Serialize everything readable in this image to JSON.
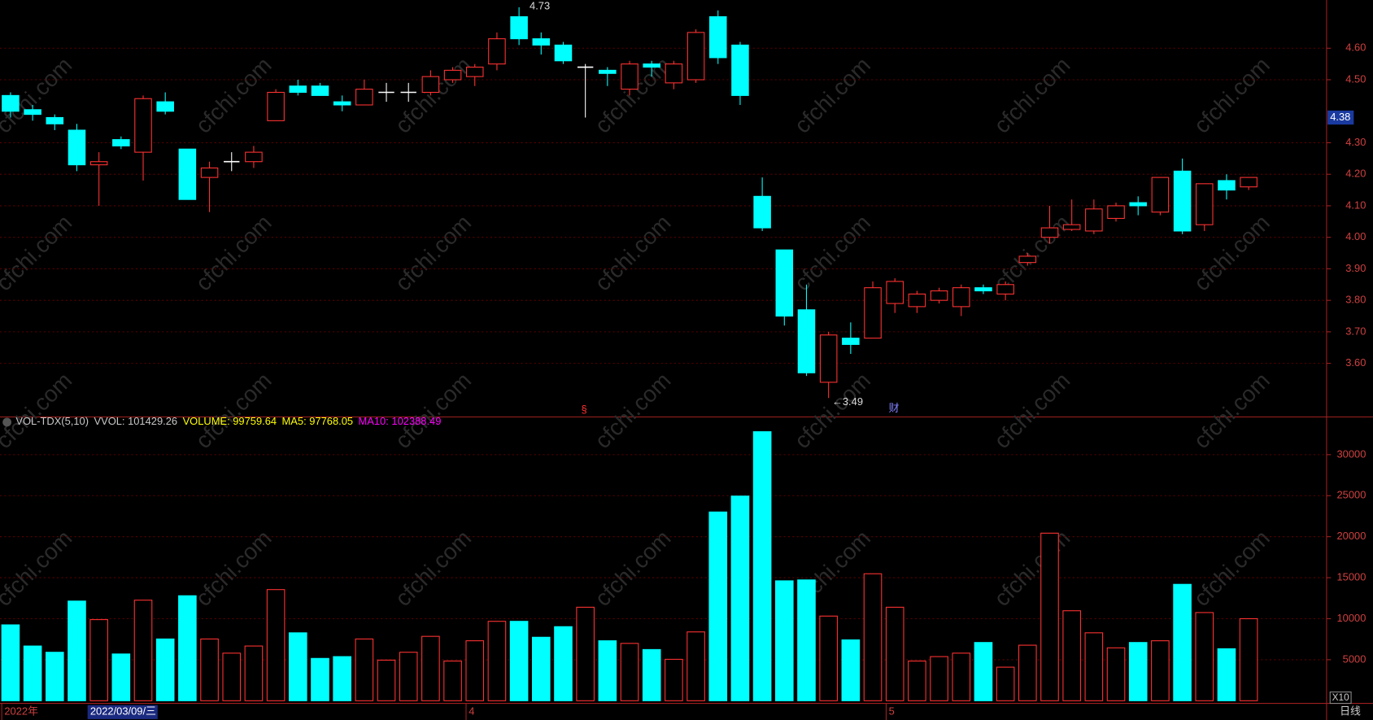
{
  "chart_data": [
    {
      "type": "candlestick",
      "open": [
        4.45,
        4.405,
        4.38,
        4.34,
        4.23,
        4.31,
        4.27,
        4.43,
        4.28,
        4.19,
        4.24,
        4.24,
        4.37,
        4.48,
        4.48,
        4.43,
        4.42,
        4.46,
        4.46,
        4.46,
        4.5,
        4.51,
        4.55,
        4.7,
        4.63,
        4.61,
        4.54,
        4.53,
        4.47,
        4.55,
        4.49,
        4.5,
        4.7,
        4.61,
        4.13,
        3.96,
        3.77,
        3.54,
        3.68,
        3.68,
        3.79,
        3.78,
        3.8,
        3.78,
        3.84,
        3.82,
        3.92,
        4.0,
        4.025,
        4.02,
        4.06,
        4.11,
        4.08,
        4.21,
        4.04,
        4.18,
        4.16
      ],
      "high": [
        4.46,
        4.42,
        4.39,
        4.36,
        4.27,
        4.32,
        4.45,
        4.46,
        4.28,
        4.24,
        4.27,
        4.29,
        4.47,
        4.5,
        4.49,
        4.45,
        4.5,
        4.49,
        4.49,
        4.53,
        4.54,
        4.55,
        4.65,
        4.73,
        4.65,
        4.62,
        4.55,
        4.54,
        4.56,
        4.56,
        4.56,
        4.66,
        4.72,
        4.62,
        4.19,
        3.96,
        3.85,
        3.7,
        3.73,
        3.86,
        3.87,
        3.83,
        3.84,
        3.85,
        3.85,
        3.86,
        3.95,
        4.1,
        4.12,
        4.12,
        4.11,
        4.13,
        4.19,
        4.25,
        4.17,
        4.2,
        4.19
      ],
      "low": [
        4.38,
        4.37,
        4.34,
        4.21,
        4.1,
        4.28,
        4.18,
        4.39,
        4.12,
        4.08,
        4.21,
        4.22,
        4.37,
        4.45,
        4.45,
        4.4,
        4.42,
        4.43,
        4.43,
        4.45,
        4.49,
        4.48,
        4.53,
        4.61,
        4.58,
        4.55,
        4.38,
        4.48,
        4.45,
        4.51,
        4.47,
        4.49,
        4.55,
        4.42,
        4.02,
        3.72,
        3.56,
        3.49,
        3.63,
        3.68,
        3.76,
        3.76,
        3.79,
        3.75,
        3.82,
        3.8,
        3.91,
        3.98,
        4.02,
        4.01,
        4.05,
        4.07,
        4.07,
        4.01,
        4.02,
        4.12,
        4.15
      ],
      "close": [
        4.4,
        4.39,
        4.36,
        4.23,
        4.24,
        4.29,
        4.44,
        4.4,
        4.12,
        4.22,
        4.24,
        4.27,
        4.46,
        4.46,
        4.45,
        4.42,
        4.47,
        4.46,
        4.46,
        4.51,
        4.53,
        4.54,
        4.63,
        4.63,
        4.61,
        4.56,
        4.54,
        4.52,
        4.55,
        4.54,
        4.55,
        4.65,
        4.57,
        4.45,
        4.03,
        3.75,
        3.57,
        3.69,
        3.66,
        3.84,
        3.86,
        3.82,
        3.83,
        3.84,
        3.83,
        3.85,
        3.94,
        4.03,
        4.04,
        4.09,
        4.1,
        4.1,
        4.19,
        4.02,
        4.17,
        4.15,
        4.19
      ],
      "up_color": "#ff3232",
      "down_color": "#00ffff",
      "doji_color": "#ffffff",
      "ylim": [
        3.43,
        4.753
      ],
      "yticks": [
        {
          "value": 3.6,
          "label": "3.60"
        },
        {
          "value": 3.7,
          "label": "3.70"
        },
        {
          "value": 3.8,
          "label": "3.80"
        },
        {
          "value": 3.9,
          "label": "3.90"
        },
        {
          "value": 4.0,
          "label": "4.00"
        },
        {
          "value": 4.1,
          "label": "4.10"
        },
        {
          "value": 4.2,
          "label": "4.20"
        },
        {
          "value": 4.3,
          "label": "4.30"
        },
        {
          "value": 4.5,
          "label": "4.50"
        },
        {
          "value": 4.6,
          "label": "4.60"
        }
      ],
      "grid": true,
      "last_price": {
        "value": 4.38,
        "label": "4.38"
      },
      "high_label": {
        "value": 4.73,
        "label": "4.73"
      },
      "low_label": {
        "value": 3.49,
        "label": "3.49"
      },
      "event_markers": [
        "§",
        "财"
      ],
      "watermark": "cfchi.com"
    },
    {
      "type": "bar",
      "header": [
        {
          "text": "VOL-TDX(5,10)",
          "color": "#c8c8c8"
        },
        {
          "text": "VVOL: 101429.26",
          "color": "#c8c8c8"
        },
        {
          "text": "VOLUME: 99759.64",
          "color": "#ffff00"
        },
        {
          "text": "MA5: 97768.05",
          "color": "#ffff00"
        },
        {
          "text": "MA10: 102388.49",
          "color": "#ff00ff"
        }
      ],
      "categories": [
        "2022年",
        null,
        null,
        null,
        null,
        null,
        null,
        null,
        null,
        null,
        null,
        null,
        null,
        null,
        null,
        null,
        null,
        null,
        null,
        null,
        null,
        "4",
        null,
        null,
        null,
        null,
        null,
        null,
        null,
        null,
        null,
        null,
        null,
        null,
        null,
        null,
        null,
        null,
        null,
        null,
        "5",
        null,
        null,
        null,
        null,
        null,
        null,
        null,
        null,
        null,
        null,
        null,
        null,
        null,
        null,
        null,
        null
      ],
      "values": [
        9250,
        6670,
        5910,
        12150,
        9890,
        5700,
        12260,
        7530,
        12800,
        7530,
        5800,
        6670,
        13550,
        8280,
        5160,
        5380,
        7530,
        4950,
        5910,
        7850,
        4840,
        7310,
        9680,
        9680,
        7740,
        9030,
        11400,
        7310,
        6990,
        6240,
        5050,
        8390,
        23010,
        24950,
        32800,
        14620,
        14730,
        10320,
        7420,
        15480,
        11400,
        4840,
        5380,
        5800,
        7100,
        4090,
        6770,
        20430,
        10970,
        8280,
        6450,
        7100,
        7310,
        14190,
        10750,
        6340,
        10000
      ],
      "ylim": [
        0,
        34600
      ],
      "yticks": [
        5000,
        10000,
        15000,
        20000,
        25000,
        30000
      ],
      "grid": true,
      "cursor_label": "2022/03/09/三",
      "scale_label": "X10",
      "period_label": "日线"
    }
  ]
}
